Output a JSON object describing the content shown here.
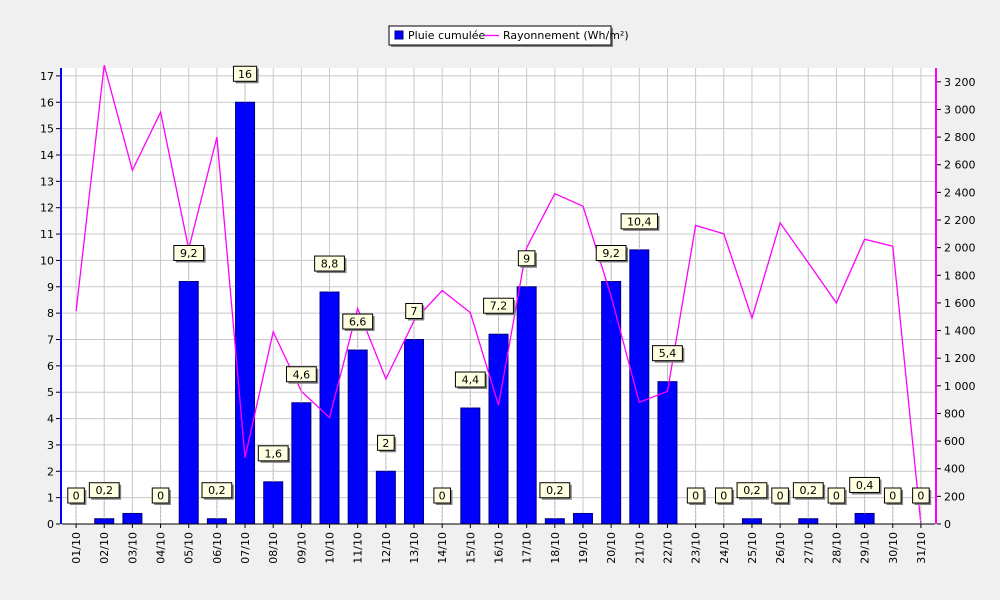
{
  "chart_data": {
    "type": "bar",
    "categories": [
      "01/10",
      "02/10",
      "03/10",
      "04/10",
      "05/10",
      "06/10",
      "07/10",
      "08/10",
      "09/10",
      "10/10",
      "11/10",
      "12/10",
      "13/10",
      "14/10",
      "15/10",
      "16/10",
      "17/10",
      "18/10",
      "19/10",
      "20/10",
      "21/10",
      "22/10",
      "23/10",
      "24/10",
      "25/10",
      "26/10",
      "27/10",
      "28/10",
      "29/10",
      "30/10",
      "31/10"
    ],
    "series": [
      {
        "name": "Pluie cumulée",
        "type": "bar",
        "axis": "left",
        "color": "#0000ff",
        "values": [
          0,
          0.2,
          0.4,
          0,
          9.2,
          0.2,
          16,
          1.6,
          4.6,
          8.8,
          6.6,
          2,
          7,
          0,
          4.4,
          7.2,
          9,
          0.2,
          0.4,
          9.2,
          10.4,
          5.4,
          0,
          0,
          0.2,
          0,
          0.2,
          0,
          0.4,
          0,
          0
        ],
        "data_labels": [
          "0",
          "0,2",
          "",
          "0",
          "9,2",
          "0,2",
          "16",
          "1,6",
          "4,6",
          "8,8",
          "6,6",
          "2",
          "7",
          "0",
          "4,4",
          "7,2",
          "9",
          "0,2",
          "",
          "9,2",
          "10,4",
          "5,4",
          "0",
          "0",
          "0,2",
          "0",
          "0,2",
          "0",
          "0,4",
          "0",
          "0"
        ]
      },
      {
        "name": "Rayonnement (Wh/m²)",
        "type": "line",
        "axis": "right",
        "color": "#ff00ff",
        "values": [
          1540,
          3320,
          2560,
          2980,
          1990,
          2800,
          480,
          1390,
          960,
          770,
          1560,
          1050,
          1470,
          1690,
          1530,
          860,
          2000,
          2390,
          2300,
          1650,
          880,
          960,
          2160,
          2100,
          1490,
          2180,
          1890,
          1600,
          2060,
          2010,
          0
        ]
      }
    ],
    "y_left": {
      "min": 0,
      "max": 17.3,
      "ticks": [
        "0",
        "1",
        "2",
        "3",
        "4",
        "5",
        "6",
        "7",
        "8",
        "9",
        "10",
        "11",
        "12",
        "13",
        "14",
        "15",
        "16",
        "17"
      ]
    },
    "y_right": {
      "min": 0,
      "max": 3300,
      "ticks": [
        "0",
        "200",
        "400",
        "600",
        "800",
        "1 000",
        "1 200",
        "1 400",
        "1 600",
        "1 800",
        "2 000",
        "2 200",
        "2 400",
        "2 600",
        "2 800",
        "3 000",
        "3 200"
      ]
    },
    "grid": true,
    "legend_position": "top-center"
  }
}
